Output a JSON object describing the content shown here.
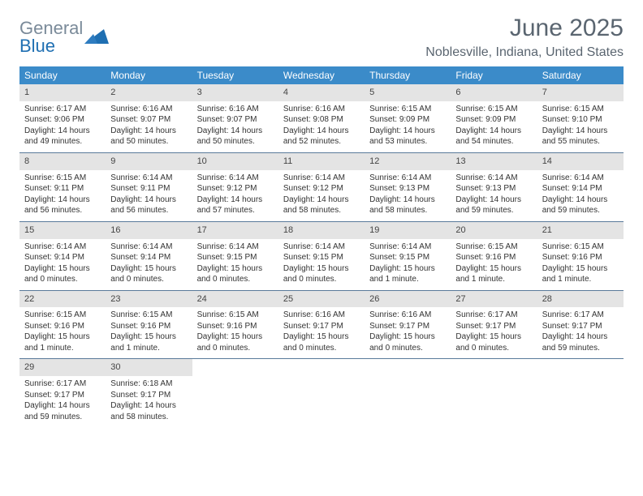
{
  "logo": {
    "text1": "General",
    "text2": "Blue"
  },
  "header": {
    "title": "June 2025",
    "location": "Noblesville, Indiana, United States"
  },
  "colors": {
    "header_bg": "#3b8bc9",
    "header_text": "#ffffff",
    "daynum_bg": "#e4e4e4",
    "rule": "#5a7a9a",
    "logo_gray": "#7a8a99",
    "logo_blue": "#1f6fb2",
    "title_gray": "#5a6570"
  },
  "weekdays": [
    "Sunday",
    "Monday",
    "Tuesday",
    "Wednesday",
    "Thursday",
    "Friday",
    "Saturday"
  ],
  "weeks": [
    [
      {
        "n": "1",
        "sr": "Sunrise: 6:17 AM",
        "ss": "Sunset: 9:06 PM",
        "dl": "Daylight: 14 hours and 49 minutes."
      },
      {
        "n": "2",
        "sr": "Sunrise: 6:16 AM",
        "ss": "Sunset: 9:07 PM",
        "dl": "Daylight: 14 hours and 50 minutes."
      },
      {
        "n": "3",
        "sr": "Sunrise: 6:16 AM",
        "ss": "Sunset: 9:07 PM",
        "dl": "Daylight: 14 hours and 50 minutes."
      },
      {
        "n": "4",
        "sr": "Sunrise: 6:16 AM",
        "ss": "Sunset: 9:08 PM",
        "dl": "Daylight: 14 hours and 52 minutes."
      },
      {
        "n": "5",
        "sr": "Sunrise: 6:15 AM",
        "ss": "Sunset: 9:09 PM",
        "dl": "Daylight: 14 hours and 53 minutes."
      },
      {
        "n": "6",
        "sr": "Sunrise: 6:15 AM",
        "ss": "Sunset: 9:09 PM",
        "dl": "Daylight: 14 hours and 54 minutes."
      },
      {
        "n": "7",
        "sr": "Sunrise: 6:15 AM",
        "ss": "Sunset: 9:10 PM",
        "dl": "Daylight: 14 hours and 55 minutes."
      }
    ],
    [
      {
        "n": "8",
        "sr": "Sunrise: 6:15 AM",
        "ss": "Sunset: 9:11 PM",
        "dl": "Daylight: 14 hours and 56 minutes."
      },
      {
        "n": "9",
        "sr": "Sunrise: 6:14 AM",
        "ss": "Sunset: 9:11 PM",
        "dl": "Daylight: 14 hours and 56 minutes."
      },
      {
        "n": "10",
        "sr": "Sunrise: 6:14 AM",
        "ss": "Sunset: 9:12 PM",
        "dl": "Daylight: 14 hours and 57 minutes."
      },
      {
        "n": "11",
        "sr": "Sunrise: 6:14 AM",
        "ss": "Sunset: 9:12 PM",
        "dl": "Daylight: 14 hours and 58 minutes."
      },
      {
        "n": "12",
        "sr": "Sunrise: 6:14 AM",
        "ss": "Sunset: 9:13 PM",
        "dl": "Daylight: 14 hours and 58 minutes."
      },
      {
        "n": "13",
        "sr": "Sunrise: 6:14 AM",
        "ss": "Sunset: 9:13 PM",
        "dl": "Daylight: 14 hours and 59 minutes."
      },
      {
        "n": "14",
        "sr": "Sunrise: 6:14 AM",
        "ss": "Sunset: 9:14 PM",
        "dl": "Daylight: 14 hours and 59 minutes."
      }
    ],
    [
      {
        "n": "15",
        "sr": "Sunrise: 6:14 AM",
        "ss": "Sunset: 9:14 PM",
        "dl": "Daylight: 15 hours and 0 minutes."
      },
      {
        "n": "16",
        "sr": "Sunrise: 6:14 AM",
        "ss": "Sunset: 9:14 PM",
        "dl": "Daylight: 15 hours and 0 minutes."
      },
      {
        "n": "17",
        "sr": "Sunrise: 6:14 AM",
        "ss": "Sunset: 9:15 PM",
        "dl": "Daylight: 15 hours and 0 minutes."
      },
      {
        "n": "18",
        "sr": "Sunrise: 6:14 AM",
        "ss": "Sunset: 9:15 PM",
        "dl": "Daylight: 15 hours and 0 minutes."
      },
      {
        "n": "19",
        "sr": "Sunrise: 6:14 AM",
        "ss": "Sunset: 9:15 PM",
        "dl": "Daylight: 15 hours and 1 minute."
      },
      {
        "n": "20",
        "sr": "Sunrise: 6:15 AM",
        "ss": "Sunset: 9:16 PM",
        "dl": "Daylight: 15 hours and 1 minute."
      },
      {
        "n": "21",
        "sr": "Sunrise: 6:15 AM",
        "ss": "Sunset: 9:16 PM",
        "dl": "Daylight: 15 hours and 1 minute."
      }
    ],
    [
      {
        "n": "22",
        "sr": "Sunrise: 6:15 AM",
        "ss": "Sunset: 9:16 PM",
        "dl": "Daylight: 15 hours and 1 minute."
      },
      {
        "n": "23",
        "sr": "Sunrise: 6:15 AM",
        "ss": "Sunset: 9:16 PM",
        "dl": "Daylight: 15 hours and 1 minute."
      },
      {
        "n": "24",
        "sr": "Sunrise: 6:15 AM",
        "ss": "Sunset: 9:16 PM",
        "dl": "Daylight: 15 hours and 0 minutes."
      },
      {
        "n": "25",
        "sr": "Sunrise: 6:16 AM",
        "ss": "Sunset: 9:17 PM",
        "dl": "Daylight: 15 hours and 0 minutes."
      },
      {
        "n": "26",
        "sr": "Sunrise: 6:16 AM",
        "ss": "Sunset: 9:17 PM",
        "dl": "Daylight: 15 hours and 0 minutes."
      },
      {
        "n": "27",
        "sr": "Sunrise: 6:17 AM",
        "ss": "Sunset: 9:17 PM",
        "dl": "Daylight: 15 hours and 0 minutes."
      },
      {
        "n": "28",
        "sr": "Sunrise: 6:17 AM",
        "ss": "Sunset: 9:17 PM",
        "dl": "Daylight: 14 hours and 59 minutes."
      }
    ],
    [
      {
        "n": "29",
        "sr": "Sunrise: 6:17 AM",
        "ss": "Sunset: 9:17 PM",
        "dl": "Daylight: 14 hours and 59 minutes."
      },
      {
        "n": "30",
        "sr": "Sunrise: 6:18 AM",
        "ss": "Sunset: 9:17 PM",
        "dl": "Daylight: 14 hours and 58 minutes."
      },
      null,
      null,
      null,
      null,
      null
    ]
  ]
}
